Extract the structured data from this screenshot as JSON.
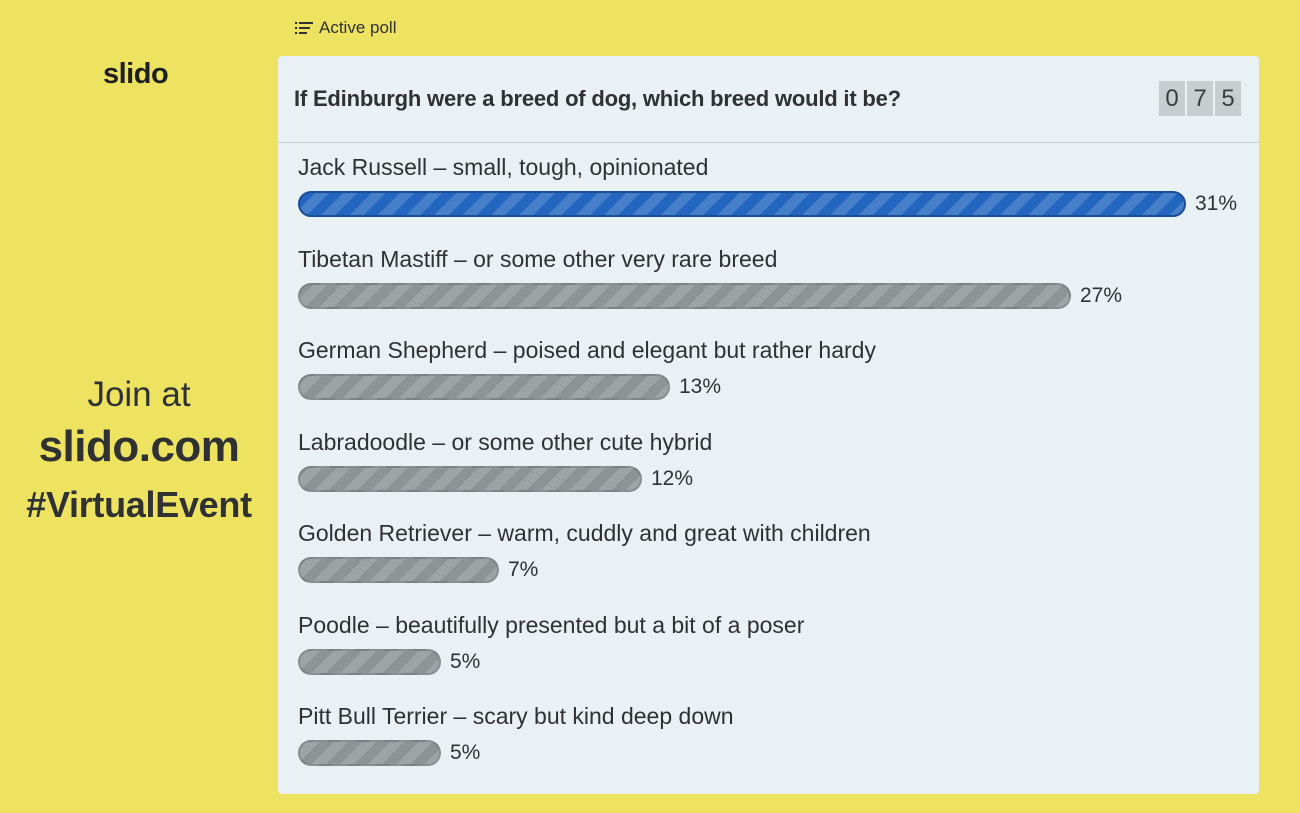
{
  "brand": {
    "logo": "slido"
  },
  "join": {
    "line1": "Join at",
    "line2": "slido.com",
    "line3": "#VirtualEvent"
  },
  "header": {
    "status_label": "Active poll",
    "status_icon": "list-icon"
  },
  "poll": {
    "question": "If Edinburgh were a breed of dog, which breed would it be?",
    "vote_count_digits": [
      "0",
      "7",
      "5"
    ],
    "options": [
      {
        "label": "Jack Russell – small, tough, opinionated",
        "percent": 31,
        "percent_label": "31%",
        "leading": true
      },
      {
        "label": "Tibetan Mastiff – or some other very rare breed",
        "percent": 27,
        "percent_label": "27%",
        "leading": false
      },
      {
        "label": "German Shepherd – poised and elegant but rather hardy",
        "percent": 13,
        "percent_label": "13%",
        "leading": false
      },
      {
        "label": "Labradoodle – or some other cute hybrid",
        "percent": 12,
        "percent_label": "12%",
        "leading": false
      },
      {
        "label": "Golden Retriever – warm, cuddly and great with children",
        "percent": 7,
        "percent_label": "7%",
        "leading": false
      },
      {
        "label": "Poodle – beautifully presented but a bit of a poser",
        "percent": 5,
        "percent_label": "5%",
        "leading": false
      },
      {
        "label": "Pitt Bull Terrier – scary but kind deep down",
        "percent": 5,
        "percent_label": "5%",
        "leading": false
      }
    ]
  },
  "colors": {
    "background": "#ede360",
    "panel": "#e9f1f4",
    "leading_bar": "#2366c0",
    "other_bar": "#8e9496"
  }
}
